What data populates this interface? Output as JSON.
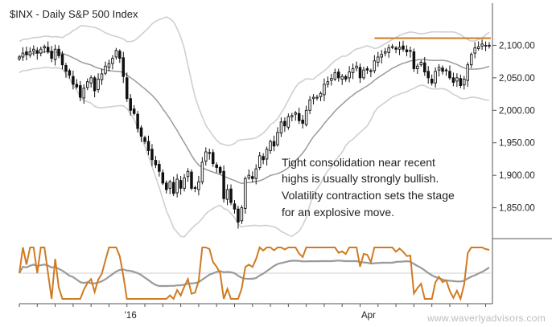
{
  "chart_data": {
    "type": "candlestick",
    "title": "$INX - Daily  S&P 500 Index",
    "y_ticks": [
      2100,
      2050,
      2000,
      1950,
      1900,
      1850
    ],
    "y_tick_labels": [
      "2,100.00",
      "2,050.00",
      "2,000.00",
      "1,950.00",
      "1,900.00",
      "1,850.00"
    ],
    "ylim": [
      1805,
      2145
    ],
    "x_tick_labels": [
      "'16",
      "Apr"
    ],
    "x_ticks_day_index": [
      30,
      96
    ],
    "annotation_lines": [
      "Tight consolidation near recent",
      "highs is usually strongly bullish.",
      "Volatility contraction sets the stage",
      "for an explosive move."
    ],
    "resistance_level": 2111,
    "watermark": "www.waverlyadvisors.com",
    "colors": {
      "resistance": "#d17a22",
      "oscillator_fast": "#d17a22",
      "oscillator_slow": "#9a9a9a",
      "bands_outer": "#cfcfcf",
      "moving_average": "#9a9a9a",
      "candles": "#111111"
    },
    "price_series": [
      2082,
      2088,
      2086,
      2090,
      2094,
      2088,
      2094,
      2098,
      2090,
      2080,
      2094,
      2084,
      2070,
      2060,
      2054,
      2040,
      2036,
      2020,
      2034,
      2044,
      2050,
      2030,
      2048,
      2056,
      2068,
      2072,
      2080,
      2092,
      2080,
      2052,
      2018,
      2000,
      1995,
      1972,
      1960,
      1952,
      1938,
      1924,
      1916,
      1906,
      1888,
      1878,
      1890,
      1872,
      1894,
      1880,
      1896,
      1906,
      1880,
      1880,
      1890,
      1920,
      1936,
      1934,
      1918,
      1912,
      1904,
      1864,
      1878,
      1858,
      1848,
      1828,
      1850,
      1895,
      1900,
      1895,
      1910,
      1930,
      1924,
      1940,
      1952,
      1945,
      1966,
      1982,
      1976,
      1990,
      1992,
      1996,
      1984,
      1980,
      2000,
      2016,
      2020,
      2020,
      2026,
      2040,
      2044,
      2049,
      2058,
      2050,
      2052,
      2048,
      2059,
      2064,
      2068,
      2050,
      2062,
      2062,
      2060,
      2076,
      2082,
      2086,
      2090,
      2096,
      2098,
      2094,
      2097,
      2094,
      2090,
      2092,
      2064,
      2068,
      2074,
      2059,
      2050,
      2042,
      2060,
      2066,
      2060,
      2062,
      2050,
      2043,
      2050,
      2038,
      2048,
      2070,
      2086,
      2096,
      2098,
      2102,
      2100,
      2099
    ]
  }
}
